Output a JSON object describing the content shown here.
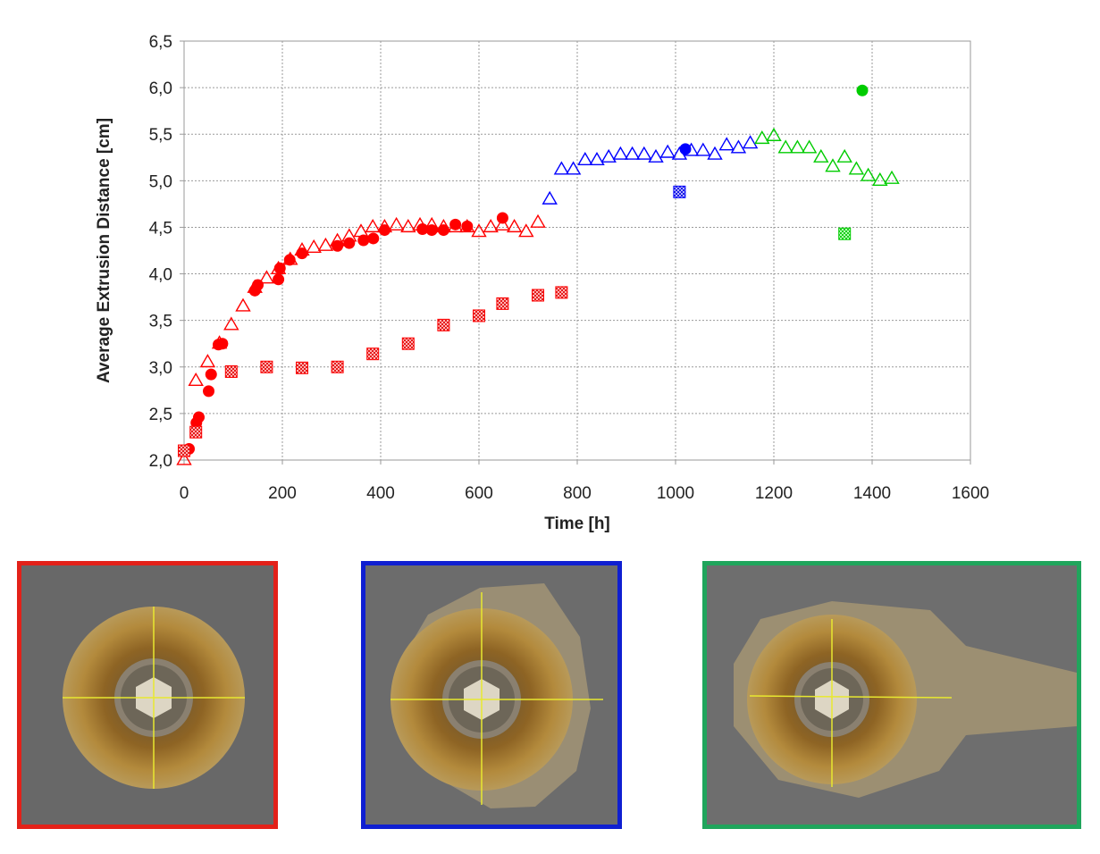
{
  "chart_data": {
    "type": "scatter",
    "title": "",
    "xlabel": "Time [h]",
    "ylabel": "Average Extrusion Distance [cm]",
    "xlim": [
      0,
      1600
    ],
    "ylim": [
      2.0,
      6.5
    ],
    "x_ticks": [
      0,
      200,
      400,
      600,
      800,
      1000,
      1200,
      1400,
      1600
    ],
    "y_ticks": [
      "2,0",
      "2,5",
      "3,0",
      "3,5",
      "4,0",
      "4,5",
      "5,0",
      "5,5",
      "6,0",
      "6,5"
    ],
    "grid": true,
    "series": [
      {
        "name": "red-triangles",
        "marker": "triangle-open",
        "color": "#ff0000",
        "points": [
          [
            0,
            2.0
          ],
          [
            24,
            2.85
          ],
          [
            48,
            3.05
          ],
          [
            72,
            3.25
          ],
          [
            96,
            3.45
          ],
          [
            120,
            3.65
          ],
          [
            144,
            3.85
          ],
          [
            168,
            3.95
          ],
          [
            192,
            4.05
          ],
          [
            216,
            4.15
          ],
          [
            240,
            4.25
          ],
          [
            264,
            4.28
          ],
          [
            288,
            4.3
          ],
          [
            312,
            4.35
          ],
          [
            336,
            4.4
          ],
          [
            360,
            4.45
          ],
          [
            384,
            4.5
          ],
          [
            408,
            4.5
          ],
          [
            432,
            4.52
          ],
          [
            456,
            4.5
          ],
          [
            480,
            4.52
          ],
          [
            504,
            4.52
          ],
          [
            528,
            4.5
          ],
          [
            552,
            4.5
          ],
          [
            576,
            4.5
          ],
          [
            600,
            4.45
          ],
          [
            624,
            4.5
          ],
          [
            648,
            4.52
          ],
          [
            672,
            4.5
          ],
          [
            696,
            4.45
          ],
          [
            720,
            4.55
          ]
        ]
      },
      {
        "name": "red-circles",
        "marker": "circle-filled",
        "color": "#ff0000",
        "points": [
          [
            10,
            2.12
          ],
          [
            25,
            2.4
          ],
          [
            30,
            2.46
          ],
          [
            50,
            2.74
          ],
          [
            55,
            2.92
          ],
          [
            70,
            3.24
          ],
          [
            78,
            3.25
          ],
          [
            144,
            3.82
          ],
          [
            150,
            3.88
          ],
          [
            192,
            3.94
          ],
          [
            195,
            4.06
          ],
          [
            215,
            4.15
          ],
          [
            240,
            4.22
          ],
          [
            312,
            4.3
          ],
          [
            336,
            4.33
          ],
          [
            365,
            4.36
          ],
          [
            385,
            4.38
          ],
          [
            408,
            4.47
          ],
          [
            485,
            4.48
          ],
          [
            504,
            4.47
          ],
          [
            528,
            4.47
          ],
          [
            552,
            4.53
          ],
          [
            576,
            4.51
          ],
          [
            648,
            4.6
          ]
        ]
      },
      {
        "name": "red-squares",
        "marker": "square-hatched",
        "color": "#ff0000",
        "points": [
          [
            0,
            2.1
          ],
          [
            24,
            2.3
          ],
          [
            96,
            2.95
          ],
          [
            168,
            3.0
          ],
          [
            240,
            2.99
          ],
          [
            312,
            3.0
          ],
          [
            384,
            3.14
          ],
          [
            456,
            3.25
          ],
          [
            528,
            3.45
          ],
          [
            600,
            3.55
          ],
          [
            648,
            3.68
          ],
          [
            720,
            3.77
          ],
          [
            768,
            3.8
          ]
        ]
      },
      {
        "name": "blue-triangles",
        "marker": "triangle-open",
        "color": "#0000ff",
        "points": [
          [
            744,
            4.8
          ],
          [
            768,
            5.12
          ],
          [
            792,
            5.12
          ],
          [
            816,
            5.22
          ],
          [
            840,
            5.22
          ],
          [
            864,
            5.25
          ],
          [
            888,
            5.28
          ],
          [
            912,
            5.28
          ],
          [
            936,
            5.28
          ],
          [
            960,
            5.25
          ],
          [
            984,
            5.3
          ],
          [
            1008,
            5.28
          ],
          [
            1032,
            5.32
          ],
          [
            1056,
            5.32
          ],
          [
            1080,
            5.28
          ],
          [
            1104,
            5.38
          ],
          [
            1128,
            5.35
          ],
          [
            1152,
            5.4
          ]
        ]
      },
      {
        "name": "blue-circle",
        "marker": "circle-filled",
        "color": "#0000ff",
        "points": [
          [
            1020,
            5.34
          ]
        ]
      },
      {
        "name": "blue-square",
        "marker": "square-hatched",
        "color": "#0000ff",
        "points": [
          [
            1008,
            4.88
          ]
        ]
      },
      {
        "name": "green-triangles",
        "marker": "triangle-open",
        "color": "#00cc00",
        "points": [
          [
            1176,
            5.45
          ],
          [
            1200,
            5.48
          ],
          [
            1224,
            5.35
          ],
          [
            1248,
            5.35
          ],
          [
            1272,
            5.35
          ],
          [
            1296,
            5.25
          ],
          [
            1320,
            5.15
          ],
          [
            1344,
            5.25
          ],
          [
            1368,
            5.12
          ],
          [
            1392,
            5.05
          ],
          [
            1416,
            5.0
          ],
          [
            1440,
            5.02
          ]
        ]
      },
      {
        "name": "green-circle",
        "marker": "circle-filled",
        "color": "#00cc00",
        "points": [
          [
            1380,
            5.97
          ]
        ]
      },
      {
        "name": "green-square",
        "marker": "square-hatched",
        "color": "#00cc00",
        "points": [
          [
            1344,
            4.43
          ]
        ]
      }
    ]
  },
  "photos": [
    {
      "frame_color": "#e32119",
      "label": "red-phase-photo"
    },
    {
      "frame_color": "#0f1fd1",
      "label": "blue-phase-photo"
    },
    {
      "frame_color": "#20a55c",
      "label": "green-phase-photo"
    }
  ]
}
